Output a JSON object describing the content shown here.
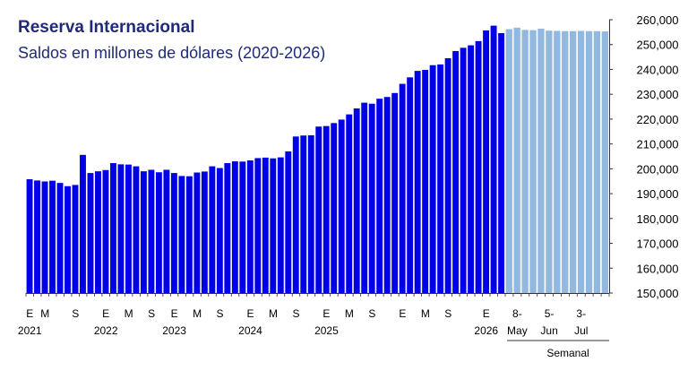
{
  "header": {
    "title": "Reserva Internacional",
    "subtitle": "Saldos en millones de dólares (2020-2026)"
  },
  "chart_data": {
    "type": "bar",
    "title": "Reserva Internacional",
    "subtitle": "Saldos en millones de dólares (2020-2026)",
    "ylim": [
      150000,
      260000
    ],
    "yticks": [
      "150,000",
      "160,000",
      "170,000",
      "180,000",
      "190,000",
      "200,000",
      "210,000",
      "220,000",
      "230,000",
      "240,000",
      "250,000",
      "260,000"
    ],
    "grid": false,
    "series": [
      {
        "name": "",
        "color": "#0000e6",
        "values": [
          195800,
          195300,
          194900,
          195200,
          194300,
          193000,
          193500,
          205600,
          198300,
          199000,
          199500,
          202300,
          201800,
          201700,
          201000,
          199000,
          199600,
          198600,
          199600,
          198300,
          197100,
          197000,
          198500,
          198900,
          201000,
          200300,
          202300,
          203000,
          202900,
          203400,
          204300,
          204500,
          204200,
          204600,
          207000,
          213000,
          213400,
          213500,
          217000,
          217200,
          218400,
          219800,
          221900,
          224300,
          226600,
          226200,
          228200,
          228900,
          230500,
          234200,
          236800,
          239400,
          239800,
          241700,
          242000,
          244500,
          247400,
          248700,
          249700,
          251400,
          255700,
          257600,
          254600
        ]
      },
      {
        "name": "Semanal",
        "color": "#93b8e0",
        "values": [
          256200,
          256800,
          255900,
          255800,
          256400,
          255600,
          255500,
          255400,
          255400,
          255500,
          255400,
          255400,
          255300
        ]
      }
    ],
    "xlabels_monthly": [
      {
        "label": "E",
        "i": 0
      },
      {
        "label": "M",
        "i": 2
      },
      {
        "label": "S",
        "i": 6
      },
      {
        "label": "E",
        "i": 10
      },
      {
        "label": "M",
        "i": 13
      },
      {
        "label": "S",
        "i": 16
      },
      {
        "label": "E",
        "i": 19
      },
      {
        "label": "M",
        "i": 22
      },
      {
        "label": "S",
        "i": 25
      },
      {
        "label": "E",
        "i": 29
      },
      {
        "label": "M",
        "i": 32
      },
      {
        "label": "S",
        "i": 35
      },
      {
        "label": "E",
        "i": 39
      },
      {
        "label": "M",
        "i": 42
      },
      {
        "label": "S",
        "i": 45
      },
      {
        "label": "E",
        "i": 49
      },
      {
        "label": "M",
        "i": 52
      },
      {
        "label": "S",
        "i": 55
      },
      {
        "label": "E",
        "i": 60
      }
    ],
    "year_labels": [
      {
        "label": "2021",
        "i": 0
      },
      {
        "label": "2022",
        "i": 10
      },
      {
        "label": "2023",
        "i": 19
      },
      {
        "label": "2024",
        "i": 29
      },
      {
        "label": "2025",
        "i": 39
      },
      {
        "label": "2026",
        "i": 60
      }
    ],
    "xlabels_weekly": [
      {
        "line1": "8-",
        "line2": "May",
        "i": 1
      },
      {
        "line1": "5-",
        "line2": "Jun",
        "i": 5
      },
      {
        "line1": "3-",
        "line2": "Jul",
        "i": 9
      }
    ],
    "weekly_group_label": "Semanal"
  }
}
